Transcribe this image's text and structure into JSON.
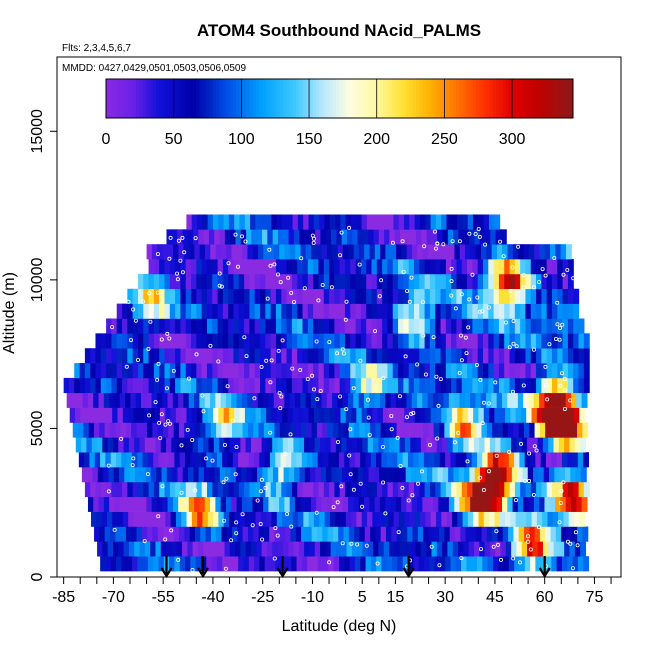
{
  "chart_data": {
    "type": "heatmap",
    "title": "ATOM4 Southbound NAcid_PALMS",
    "flights_note": "Flts: 2,3,4,5,6,7",
    "dates_note": "MMDD: 0427,0429,0501,0503,0506,0509",
    "xlabel": "Latitude (deg N)",
    "ylabel": "Altitude (m)",
    "xlim": [
      -87,
      83
    ],
    "ylim": [
      0,
      17500
    ],
    "x_ticks": [
      -85,
      -80,
      -75,
      -70,
      -65,
      -60,
      -55,
      -50,
      -45,
      -40,
      -35,
      -30,
      -25,
      -20,
      -15,
      -10,
      -5,
      0,
      5,
      10,
      15,
      20,
      25,
      30,
      35,
      40,
      45,
      50,
      55,
      60,
      65,
      70,
      75,
      80
    ],
    "x_tick_labels": [
      "-85",
      "-70",
      "-55",
      "-40",
      "-25",
      "-10",
      "5",
      "15",
      "30",
      "45",
      "60",
      "75"
    ],
    "x_tick_label_values": [
      -85,
      -70,
      -55,
      -40,
      -25,
      -10,
      5,
      15,
      30,
      45,
      60,
      75
    ],
    "y_ticks": [
      0,
      5000,
      10000,
      15000
    ],
    "y_tick_labels": [
      "0",
      "5000",
      "10000",
      "15000"
    ],
    "colorbar": {
      "range": [
        0,
        345
      ],
      "tick_values": [
        0,
        50,
        100,
        150,
        200,
        250,
        300
      ],
      "tick_labels": [
        "0",
        "50",
        "100",
        "150",
        "200",
        "250",
        "300"
      ],
      "stops": [
        {
          "v": 0,
          "color": "#8a2be2"
        },
        {
          "v": 20,
          "color": "#6a20e8"
        },
        {
          "v": 40,
          "color": "#1010d8"
        },
        {
          "v": 65,
          "color": "#0000a8"
        },
        {
          "v": 90,
          "color": "#0050e8"
        },
        {
          "v": 115,
          "color": "#00a0ff"
        },
        {
          "v": 140,
          "color": "#40c8ff"
        },
        {
          "v": 160,
          "color": "#b8e8ff"
        },
        {
          "v": 180,
          "color": "#fffde0"
        },
        {
          "v": 200,
          "color": "#fff8a0"
        },
        {
          "v": 220,
          "color": "#ffe030"
        },
        {
          "v": 240,
          "color": "#ffb000"
        },
        {
          "v": 260,
          "color": "#ff7000"
        },
        {
          "v": 280,
          "color": "#ff3000"
        },
        {
          "v": 300,
          "color": "#e00000"
        },
        {
          "v": 320,
          "color": "#c00000"
        },
        {
          "v": 345,
          "color": "#8b1a1a"
        }
      ]
    },
    "profile_arrows_lat": [
      -54,
      -43,
      -19,
      19,
      60
    ],
    "grid": false,
    "colorbar_placement": "top-inside"
  }
}
